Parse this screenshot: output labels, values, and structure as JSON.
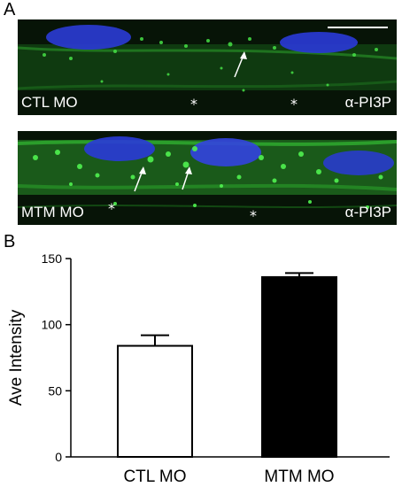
{
  "figure": {
    "panel_a_label": "A",
    "panel_b_label": "B",
    "micrographs": [
      {
        "condition_label": "CTL MO",
        "stain_label": "α-PI3P",
        "asterisk": "*"
      },
      {
        "condition_label": "MTM MO",
        "stain_label": "α-PI3P",
        "asterisk": "*"
      }
    ]
  },
  "colors": {
    "micrograph_bg": "#0b1a0b",
    "membrane_green": "#2fb82f",
    "puncta_green": "#4cf04c",
    "nucleus_blue": "#2a3ad8",
    "mtm_bar": "#000000",
    "ctl_bar": "#ffffff"
  },
  "chart_data": {
    "type": "bar",
    "categories": [
      "CTL MO",
      "MTM MO"
    ],
    "values": [
      84,
      136
    ],
    "errors": [
      8,
      3
    ],
    "bar_colors": [
      "#ffffff",
      "#000000"
    ],
    "xlabel": "",
    "ylabel": "Ave Intensity",
    "ylim": [
      0,
      150
    ],
    "yticks": [
      0,
      50,
      100,
      150
    ],
    "grid": false,
    "legend": "none"
  }
}
